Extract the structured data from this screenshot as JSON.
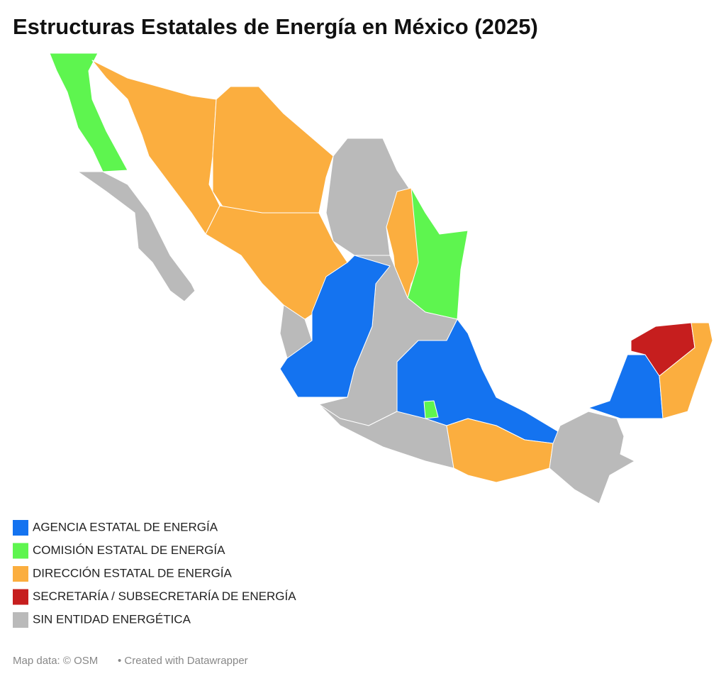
{
  "title": "Estructuras Estatales de Energía en México (2025)",
  "legend": [
    {
      "label": "AGENCIA ESTATAL DE ENERGÍA",
      "color": "#1473f0"
    },
    {
      "label": "COMISIÓN ESTATAL DE ENERGÍA",
      "color": "#5ef54f"
    },
    {
      "label": "DIRECCIÓN ESTATAL DE ENERGÍA",
      "color": "#fbae3f"
    },
    {
      "label": "SECRETARÍA / SUBSECRETARÍA DE ENERGÍA",
      "color": "#c61e1e"
    },
    {
      "label": "SIN ENTIDAD ENERGÉTICA",
      "color": "#bababa"
    }
  ],
  "footer": {
    "source": "Map data: © OSM",
    "credit": "• Created with Datawrapper"
  }
}
